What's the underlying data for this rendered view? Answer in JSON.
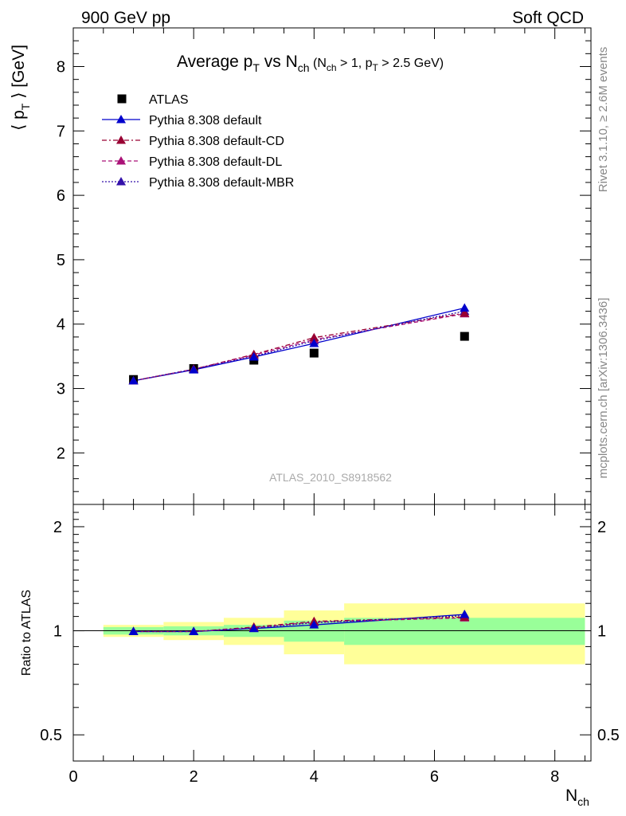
{
  "header": {
    "left": "900 GeV pp",
    "right": "Soft QCD"
  },
  "side_text": {
    "rivet": "Rivet 3.1.10, ≥ 2.6M events",
    "mcplots": "mcplots.cern.ch [arXiv:1306.3436]"
  },
  "colors": {
    "data": "#000000",
    "default": "#0000cc",
    "cd": "#990033",
    "dl": "#aa1177",
    "mbr": "#3311aa",
    "band_inner": "#99ff99",
    "band_outer": "#ffff99"
  },
  "chart_data": {
    "type": "line",
    "title": "Average p_T vs N_ch (N_ch > 1, p_T > 2.5 GeV)",
    "title_parts": {
      "main": "Average p",
      "main_sub": "T",
      "vs": " vs N",
      "vs_sub": "ch",
      "cond_a": " (N",
      "cond_a_sub": "ch",
      "cond_b": " > 1, p",
      "cond_b_sub": "T",
      "cond_c": " > 2.5 GeV)"
    },
    "ylabel_parts": {
      "open": "⟨ p",
      "sub": "T",
      "close": " ⟩  [GeV]"
    },
    "xlabel_parts": {
      "main": "N",
      "sub": "ch"
    },
    "ratio_ylabel": "Ratio to ATLAS",
    "analysis_label": "ATLAS_2010_S8918562",
    "xlim": [
      0,
      8.6
    ],
    "ylim": [
      1.2,
      8.6
    ],
    "ratio_ylim": [
      0.42,
      2.32
    ],
    "ratio_log": true,
    "xticks": [
      0,
      2,
      4,
      6,
      8
    ],
    "yticks": [
      2,
      3,
      4,
      5,
      6,
      7,
      8
    ],
    "ratio_ticks": [
      {
        "value": 0.5,
        "label": "0.5"
      },
      {
        "value": 1,
        "label": "1"
      },
      {
        "value": 2,
        "label": "2"
      }
    ],
    "legend_position": "top-left",
    "data": {
      "name": "ATLAS",
      "x": [
        1,
        2,
        3,
        4,
        6.5
      ],
      "y": [
        3.14,
        3.31,
        3.44,
        3.55,
        3.81
      ],
      "x_edges": [
        [
          0.5,
          1.5
        ],
        [
          1.5,
          2.5
        ],
        [
          2.5,
          3.5
        ],
        [
          3.5,
          4.5
        ],
        [
          4.5,
          8.5
        ]
      ],
      "ratio_band_inner": [
        [
          0.975,
          1.025
        ],
        [
          0.97,
          1.03
        ],
        [
          0.96,
          1.04
        ],
        [
          0.93,
          1.07
        ],
        [
          0.91,
          1.09
        ]
      ],
      "ratio_band_outer": [
        [
          0.96,
          1.04
        ],
        [
          0.94,
          1.06
        ],
        [
          0.91,
          1.09
        ],
        [
          0.855,
          1.145
        ],
        [
          0.8,
          1.2
        ]
      ]
    },
    "series": [
      {
        "name": "Pythia 8.308 default",
        "color_key": "default",
        "dash": "",
        "x": [
          1,
          2,
          3,
          4,
          6.5
        ],
        "y": [
          3.12,
          3.29,
          3.49,
          3.7,
          4.25
        ],
        "ratio": [
          0.995,
          0.995,
          1.015,
          1.04,
          1.115
        ]
      },
      {
        "name": "Pythia 8.308 default-CD",
        "color_key": "cd",
        "dash": "6,3,2,3",
        "x": [
          1,
          2,
          3,
          4,
          6.5
        ],
        "y": [
          3.12,
          3.3,
          3.53,
          3.79,
          4.17
        ],
        "ratio": [
          0.995,
          0.995,
          1.025,
          1.065,
          1.095
        ]
      },
      {
        "name": "Pythia 8.308 default-DL",
        "color_key": "dl",
        "dash": "5,3",
        "x": [
          1,
          2,
          3,
          4,
          6.5
        ],
        "y": [
          3.12,
          3.3,
          3.52,
          3.76,
          4.16
        ],
        "ratio": [
          0.995,
          0.995,
          1.02,
          1.06,
          1.09
        ]
      },
      {
        "name": "Pythia 8.308 default-MBR",
        "color_key": "mbr",
        "dash": "2,2",
        "x": [
          1,
          2,
          3,
          4,
          6.5
        ],
        "y": [
          3.12,
          3.3,
          3.5,
          3.74,
          4.2
        ],
        "ratio": [
          0.995,
          0.995,
          1.018,
          1.055,
          1.105
        ]
      }
    ]
  }
}
